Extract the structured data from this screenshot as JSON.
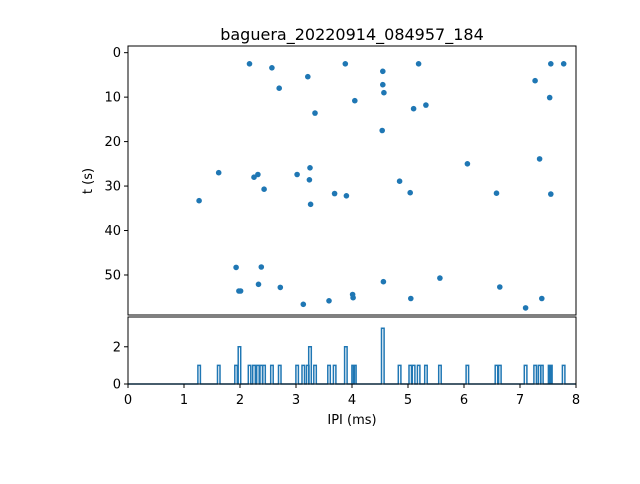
{
  "chart_data": {
    "type": "scatter",
    "title": "baguera_20220914_084957_184",
    "color": "#1f77b4",
    "top_panel": {
      "type": "scatter",
      "ylabel": "t (s)",
      "y_inverted": true,
      "xlim": [
        0,
        8
      ],
      "ylim": [
        59,
        -1.5
      ],
      "yticks": [
        0,
        10,
        20,
        30,
        40,
        50
      ],
      "points": [
        {
          "x": 2.17,
          "y": 2.5
        },
        {
          "x": 2.57,
          "y": 3.4
        },
        {
          "x": 3.21,
          "y": 5.4
        },
        {
          "x": 3.88,
          "y": 2.5
        },
        {
          "x": 4.55,
          "y": 4.2
        },
        {
          "x": 5.19,
          "y": 2.5
        },
        {
          "x": 2.7,
          "y": 8.0
        },
        {
          "x": 4.55,
          "y": 7.2
        },
        {
          "x": 4.57,
          "y": 9.0
        },
        {
          "x": 4.05,
          "y": 10.8
        },
        {
          "x": 5.1,
          "y": 12.6
        },
        {
          "x": 5.32,
          "y": 11.8
        },
        {
          "x": 3.34,
          "y": 13.6
        },
        {
          "x": 4.54,
          "y": 17.5
        },
        {
          "x": 7.27,
          "y": 6.3
        },
        {
          "x": 7.55,
          "y": 2.5
        },
        {
          "x": 7.78,
          "y": 2.5
        },
        {
          "x": 7.53,
          "y": 10.1
        },
        {
          "x": 1.27,
          "y": 33.3
        },
        {
          "x": 1.62,
          "y": 27.0
        },
        {
          "x": 2.25,
          "y": 28.0
        },
        {
          "x": 2.32,
          "y": 27.4
        },
        {
          "x": 2.43,
          "y": 30.7
        },
        {
          "x": 3.02,
          "y": 27.4
        },
        {
          "x": 3.25,
          "y": 25.9
        },
        {
          "x": 3.24,
          "y": 28.6
        },
        {
          "x": 3.26,
          "y": 34.1
        },
        {
          "x": 3.69,
          "y": 31.7
        },
        {
          "x": 3.9,
          "y": 32.2
        },
        {
          "x": 4.85,
          "y": 28.9
        },
        {
          "x": 5.04,
          "y": 31.5
        },
        {
          "x": 6.06,
          "y": 25.0
        },
        {
          "x": 6.58,
          "y": 31.6
        },
        {
          "x": 7.35,
          "y": 23.9
        },
        {
          "x": 7.55,
          "y": 31.8
        },
        {
          "x": 1.93,
          "y": 48.3
        },
        {
          "x": 1.98,
          "y": 53.6
        },
        {
          "x": 2.01,
          "y": 53.6
        },
        {
          "x": 2.33,
          "y": 52.1
        },
        {
          "x": 2.38,
          "y": 48.2
        },
        {
          "x": 2.72,
          "y": 52.8
        },
        {
          "x": 3.13,
          "y": 56.6
        },
        {
          "x": 3.59,
          "y": 55.8
        },
        {
          "x": 4.01,
          "y": 54.4
        },
        {
          "x": 4.02,
          "y": 55.1
        },
        {
          "x": 4.56,
          "y": 51.5
        },
        {
          "x": 5.05,
          "y": 55.3
        },
        {
          "x": 5.57,
          "y": 50.7
        },
        {
          "x": 6.64,
          "y": 52.7
        },
        {
          "x": 7.1,
          "y": 57.4
        },
        {
          "x": 7.39,
          "y": 55.3
        }
      ]
    },
    "bottom_panel": {
      "type": "line",
      "xlabel": "IPI (ms)",
      "xlim": [
        0,
        8
      ],
      "xticks": [
        0,
        1,
        2,
        3,
        4,
        5,
        6,
        7,
        8
      ],
      "ylim": [
        0,
        3.6
      ],
      "yticks": [
        0,
        2
      ],
      "bins": [
        {
          "x": 1.27,
          "y": 1
        },
        {
          "x": 1.62,
          "y": 1
        },
        {
          "x": 1.93,
          "y": 1
        },
        {
          "x": 1.99,
          "y": 2
        },
        {
          "x": 2.17,
          "y": 1
        },
        {
          "x": 2.25,
          "y": 1
        },
        {
          "x": 2.32,
          "y": 1
        },
        {
          "x": 2.38,
          "y": 1
        },
        {
          "x": 2.43,
          "y": 1
        },
        {
          "x": 2.57,
          "y": 1
        },
        {
          "x": 2.71,
          "y": 1
        },
        {
          "x": 3.02,
          "y": 1
        },
        {
          "x": 3.13,
          "y": 1
        },
        {
          "x": 3.21,
          "y": 1
        },
        {
          "x": 3.25,
          "y": 2
        },
        {
          "x": 3.34,
          "y": 1
        },
        {
          "x": 3.59,
          "y": 1
        },
        {
          "x": 3.69,
          "y": 1
        },
        {
          "x": 3.89,
          "y": 2
        },
        {
          "x": 4.02,
          "y": 1
        },
        {
          "x": 4.05,
          "y": 1
        },
        {
          "x": 4.55,
          "y": 3
        },
        {
          "x": 4.85,
          "y": 1
        },
        {
          "x": 5.04,
          "y": 1
        },
        {
          "x": 5.1,
          "y": 1
        },
        {
          "x": 5.19,
          "y": 1
        },
        {
          "x": 5.32,
          "y": 1
        },
        {
          "x": 5.57,
          "y": 1
        },
        {
          "x": 6.06,
          "y": 1
        },
        {
          "x": 6.58,
          "y": 1
        },
        {
          "x": 6.64,
          "y": 1
        },
        {
          "x": 7.1,
          "y": 1
        },
        {
          "x": 7.27,
          "y": 1
        },
        {
          "x": 7.35,
          "y": 1
        },
        {
          "x": 7.39,
          "y": 1
        },
        {
          "x": 7.53,
          "y": 1
        },
        {
          "x": 7.55,
          "y": 1
        },
        {
          "x": 7.78,
          "y": 1
        }
      ]
    }
  }
}
